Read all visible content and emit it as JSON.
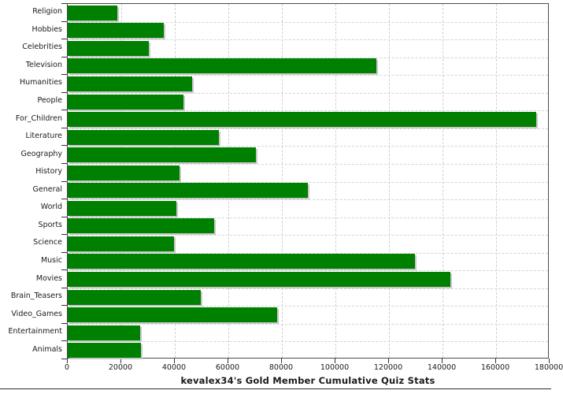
{
  "title": "kevalex34's Gold Member Cumulative Quiz Stats",
  "colors": {
    "bar": "#008000",
    "bar_shadow": "#c9c9c9",
    "grid": "#d0d0d0",
    "plot_border": "#4a4a4a",
    "text": "#1a1a1a",
    "background": "#ffffff"
  },
  "chart_data": {
    "type": "bar",
    "orientation": "horizontal",
    "title": "kevalex34's Gold Member Cumulative Quiz Stats",
    "xlabel": "",
    "ylabel": "",
    "xlim": [
      0,
      180000
    ],
    "xticks": [
      0,
      20000,
      40000,
      60000,
      80000,
      100000,
      120000,
      140000,
      160000,
      180000
    ],
    "grid": true,
    "legend": false,
    "categories": [
      "Religion",
      "Hobbies",
      "Celebrities",
      "Television",
      "Humanities",
      "People",
      "For_Children",
      "Literature",
      "Geography",
      "History",
      "General",
      "World",
      "Sports",
      "Science",
      "Music",
      "Movies",
      "Brain_Teasers",
      "Video_Games",
      "Entertainment",
      "Animals"
    ],
    "values": [
      18600,
      36000,
      30400,
      115400,
      46600,
      43200,
      175100,
      56500,
      70200,
      41900,
      89600,
      40600,
      54700,
      39600,
      129800,
      142900,
      49600,
      78300,
      27200,
      27400
    ]
  }
}
